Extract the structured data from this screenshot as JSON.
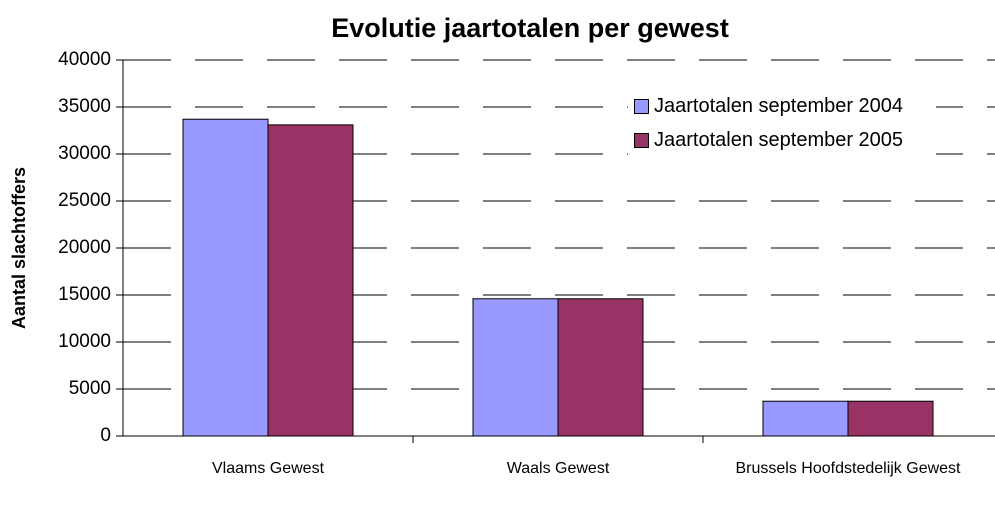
{
  "chart_data": {
    "type": "bar",
    "title": "Evolutie  jaartotalen per gewest",
    "y_label": "Aantal slachtoffers",
    "categories": [
      "Vlaams Gewest",
      "Waals Gewest",
      "Brussels Hoofdstedelijk Gewest"
    ],
    "series": [
      {
        "name": "Jaartotalen september 2004",
        "color": "#9999ff",
        "values": [
          33700,
          14600,
          3700
        ]
      },
      {
        "name": "Jaartotalen september 2005",
        "color": "#993366",
        "values": [
          33100,
          14600,
          3700
        ]
      }
    ],
    "ylim": [
      0,
      40000
    ],
    "yticks": [
      0,
      5000,
      10000,
      15000,
      20000,
      25000,
      30000,
      35000,
      40000
    ],
    "grid": true,
    "legend": "upper right"
  }
}
